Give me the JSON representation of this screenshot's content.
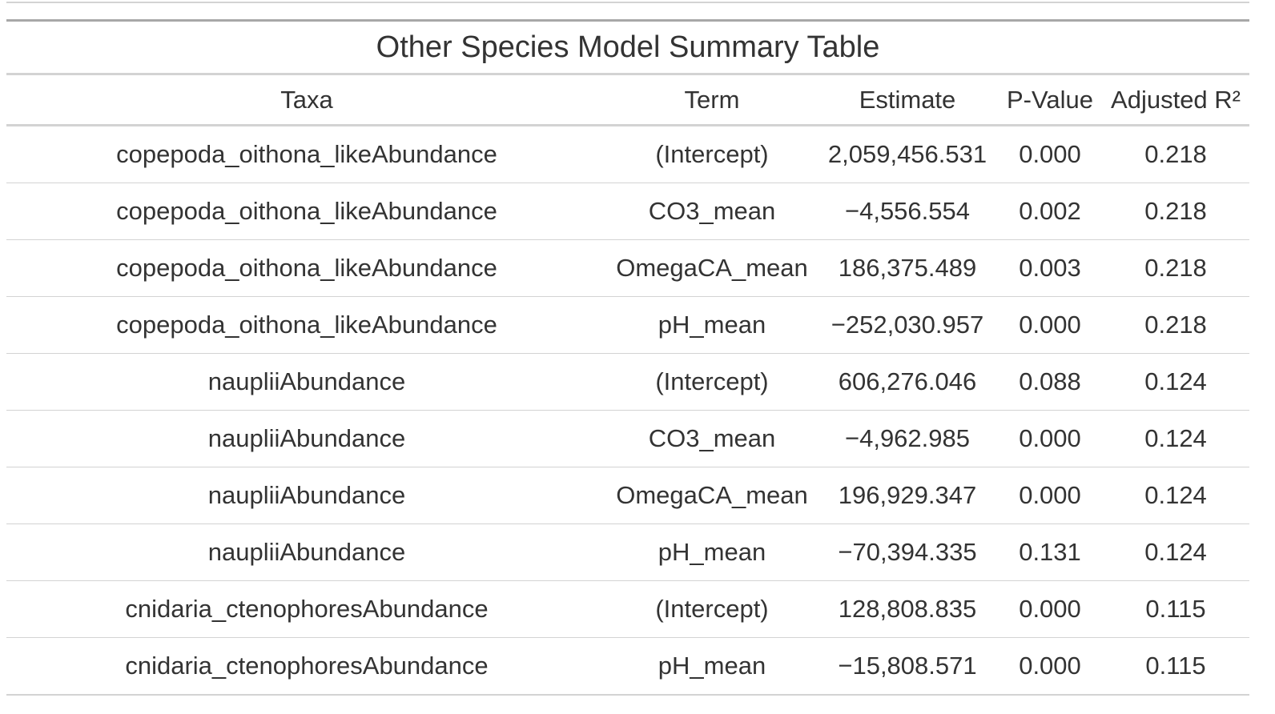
{
  "table": {
    "title": "Other Species Model Summary Table",
    "columns": [
      "Taxa",
      "Term",
      "Estimate",
      "P-Value",
      "Adjusted R²"
    ],
    "rows": [
      [
        "copepoda_oithona_likeAbundance",
        "(Intercept)",
        "2,059,456.531",
        "0.000",
        "0.218"
      ],
      [
        "copepoda_oithona_likeAbundance",
        "CO3_mean",
        "−4,556.554",
        "0.002",
        "0.218"
      ],
      [
        "copepoda_oithona_likeAbundance",
        "OmegaCA_mean",
        "186,375.489",
        "0.003",
        "0.218"
      ],
      [
        "copepoda_oithona_likeAbundance",
        "pH_mean",
        "−252,030.957",
        "0.000",
        "0.218"
      ],
      [
        "naupliiAbundance",
        "(Intercept)",
        "606,276.046",
        "0.088",
        "0.124"
      ],
      [
        "naupliiAbundance",
        "CO3_mean",
        "−4,962.985",
        "0.000",
        "0.124"
      ],
      [
        "naupliiAbundance",
        "OmegaCA_mean",
        "196,929.347",
        "0.000",
        "0.124"
      ],
      [
        "naupliiAbundance",
        "pH_mean",
        "−70,394.335",
        "0.131",
        "0.124"
      ],
      [
        "cnidaria_ctenophoresAbundance",
        "(Intercept)",
        "128,808.835",
        "0.000",
        "0.115"
      ],
      [
        "cnidaria_ctenophoresAbundance",
        "pH_mean",
        "−15,808.571",
        "0.000",
        "0.115"
      ]
    ]
  },
  "colors": {
    "text": "#333333",
    "rule_light": "#d3d3d3",
    "rule_dark": "#a8a8a8"
  }
}
